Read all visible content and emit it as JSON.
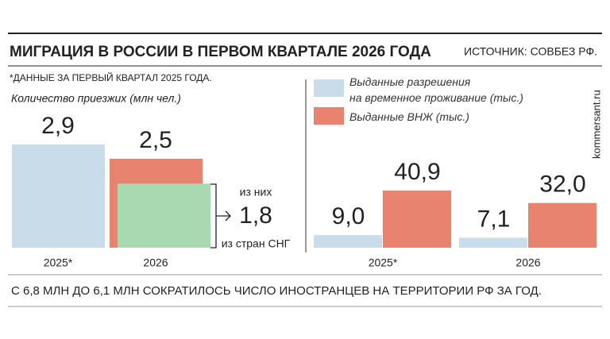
{
  "title": "МИГРАЦИЯ В РОССИИ В ПЕРВОМ КВАРТАЛЕ 2026 ГОДА",
  "source": "ИСТОЧНИК: СОВБЕЗ РФ.",
  "note": "*ДАННЫЕ ЗА ПЕРВЫЙ КВАРТАЛ 2025 ГОДА.",
  "footer": "С 6,8 МЛН ДО 6,1 МЛН СОКРАТИЛОСЬ ЧИСЛО ИНОСТРАНЦЕВ НА ТЕРРИТОРИИ РФ ЗА ГОД.",
  "watermark": "kommersant.ru",
  "chart_data": [
    {
      "type": "bar",
      "title": "Количество приезжих (млн чел.)",
      "categories": [
        "2025*",
        "2026"
      ],
      "values": [
        2.9,
        2.5
      ],
      "value_labels": [
        "2,9",
        "2,5"
      ],
      "colors": [
        "#c8dcea",
        "#e8836f"
      ],
      "inset": {
        "label_top": "из них",
        "value": 1.8,
        "value_label": "1,8",
        "label_bottom": "из стран СНГ",
        "color": "#a9d9b0"
      }
    },
    {
      "type": "grouped-bar",
      "categories": [
        "2025*",
        "2026"
      ],
      "series": [
        {
          "name": "Выданные разрешения\nна временное проживание (тыс.)",
          "color": "#c8dcea",
          "values": [
            9.0,
            7.1
          ],
          "value_labels": [
            "9,0",
            "7,1"
          ]
        },
        {
          "name": "Выданные ВНЖ (тыс.)",
          "color": "#e8836f",
          "values": [
            40.9,
            32.0
          ],
          "value_labels": [
            "40,9",
            "32,0"
          ]
        }
      ]
    }
  ]
}
